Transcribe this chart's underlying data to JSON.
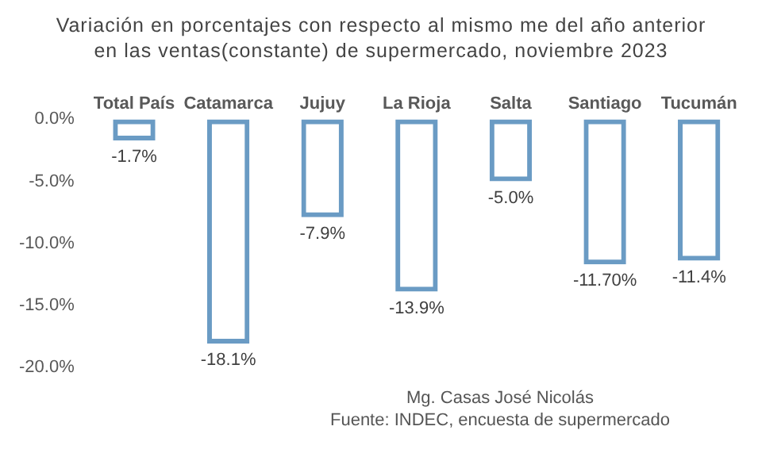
{
  "chart_data": {
    "type": "bar",
    "title": "Variación en porcentajes con respecto al mismo me del año anterior en las ventas(constante) de supermercado, noviembre 2023",
    "categories": [
      "Total País",
      "Catamarca",
      "Jujuy",
      "La Rioja",
      "Salta",
      "Santiago",
      "Tucumán"
    ],
    "values": [
      -1.7,
      -18.1,
      -7.9,
      -13.9,
      -5.0,
      -11.7,
      -11.4
    ],
    "value_labels": [
      "-1.7%",
      "-18.1%",
      "-7.9%",
      "-13.9%",
      "-5.0%",
      "-11.70%",
      "-11.4%"
    ],
    "color": "#6a9bc4",
    "ylim": [
      -20,
      0
    ],
    "yticks": [
      {
        "value": 0,
        "label": "0.0%"
      },
      {
        "value": -5,
        "label": "-5.0%"
      },
      {
        "value": -10,
        "label": "-10.0%"
      },
      {
        "value": -15,
        "label": "-15.0%"
      },
      {
        "value": -20,
        "label": "-20.0%"
      }
    ],
    "grid": false,
    "legend": false,
    "annotations": [
      "Mg. Casas José Nicolás",
      "Fuente: INDEC, encuesta de supermercado"
    ]
  }
}
